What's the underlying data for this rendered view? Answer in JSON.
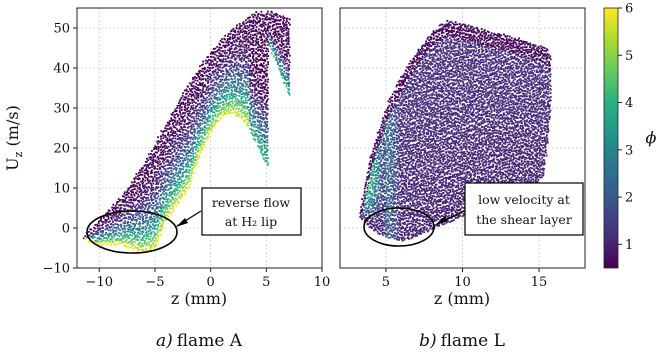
{
  "chart_data": [
    {
      "type": "scatter",
      "panel": "flame-a",
      "caption_prefix": "a)",
      "caption": "flame A",
      "xlabel": "z (mm)",
      "ylabel": "U_z (m/s)",
      "xlim": [
        -12,
        10
      ],
      "ylim": [
        -10,
        55
      ],
      "xticks": [
        -10,
        -5,
        0,
        5,
        10
      ],
      "yticks": [
        -10,
        0,
        10,
        20,
        30,
        40,
        50
      ],
      "grid": true,
      "annotation": {
        "lines": [
          "reverse flow",
          "at H₂ lip"
        ],
        "target": [
          -7,
          -1
        ]
      },
      "color_meaning": "phi"
    },
    {
      "type": "scatter",
      "panel": "flame-l",
      "caption_prefix": "b)",
      "caption": "flame L",
      "xlabel": "z (mm)",
      "xlim": [
        2,
        18
      ],
      "ylim": [
        -10,
        55
      ],
      "xticks": [
        5,
        10,
        15
      ],
      "yticks": [
        -10,
        0,
        10,
        20,
        30,
        40,
        50
      ],
      "grid": true,
      "annotation": {
        "lines": [
          "low velocity at",
          "the shear layer"
        ],
        "target": [
          6,
          -1
        ]
      },
      "color_meaning": "phi"
    }
  ],
  "colorbar": {
    "label": "ϕ",
    "range": [
      0.5,
      6
    ],
    "ticks": [
      1,
      2,
      3,
      4,
      5,
      6
    ],
    "colormap": "viridis"
  },
  "colors": {
    "dark": "#440154",
    "mid": "#31688e",
    "teal": "#21918c",
    "green": "#35b779",
    "yellow": "#fde725",
    "grid": "#cfcfcf"
  }
}
